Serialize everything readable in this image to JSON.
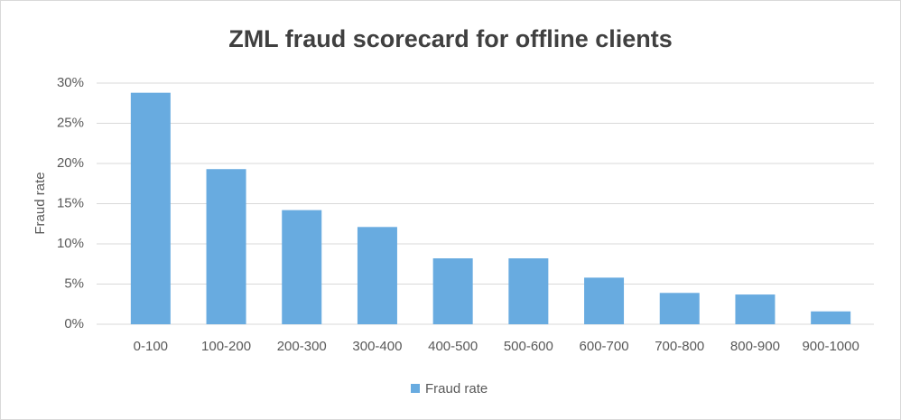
{
  "chart_data": {
    "type": "bar",
    "title": "ZML  fraud scorecard for offline clients",
    "y_label": "Fraud rate",
    "categories": [
      "0-100",
      "100-200",
      "200-300",
      "300-400",
      "400-500",
      "500-600",
      "600-700",
      "700-800",
      "800-900",
      "900-1000"
    ],
    "series": [
      {
        "name": "Fraud rate",
        "color": "#68abe0",
        "values": [
          28.8,
          19.3,
          14.2,
          12.1,
          8.2,
          8.2,
          5.8,
          3.9,
          3.7,
          1.6
        ]
      }
    ],
    "ylim": [
      0,
      30
    ],
    "yticks": [
      {
        "value": 0,
        "label": "0%"
      },
      {
        "value": 5,
        "label": "5%"
      },
      {
        "value": 10,
        "label": "10%"
      },
      {
        "value": 15,
        "label": "15%"
      },
      {
        "value": 20,
        "label": "20%"
      },
      {
        "value": 25,
        "label": "25%"
      },
      {
        "value": 30,
        "label": "30%"
      }
    ],
    "grid": true,
    "legend": "bottom"
  }
}
